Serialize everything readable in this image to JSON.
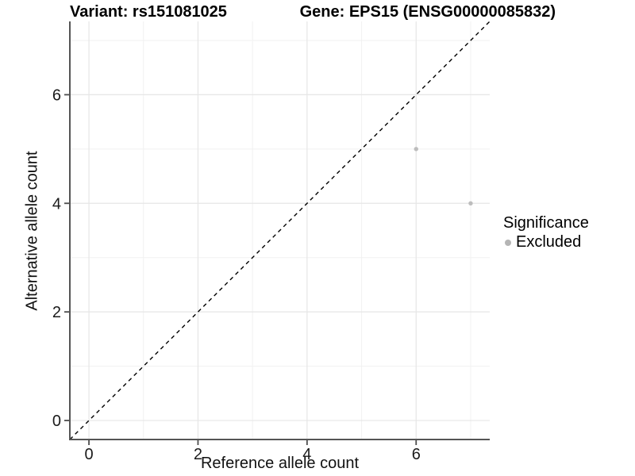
{
  "chart_data": {
    "type": "scatter",
    "title_left": "Variant: rs151081025",
    "title_right": "Gene: EPS15 (ENSG00000085832)",
    "xlabel": "Reference allele count",
    "ylabel": "Alternative allele count",
    "xlim": [
      -0.35,
      7.35
    ],
    "ylim": [
      -0.35,
      7.35
    ],
    "xticks": [
      0,
      2,
      4,
      6
    ],
    "yticks": [
      0,
      2,
      4,
      6
    ],
    "minor_xticks": [
      1,
      3,
      5,
      7
    ],
    "minor_yticks": [
      1,
      3,
      5,
      7
    ],
    "grid": "major+minor",
    "points": [
      {
        "x": 6,
        "y": 5,
        "series": "Excluded"
      },
      {
        "x": 7,
        "y": 4,
        "series": "Excluded"
      }
    ],
    "identity_line": {
      "style": "dashed",
      "equation": "y = x",
      "color": "#000000"
    },
    "legend": {
      "title": "Significance",
      "position": "right",
      "items": [
        {
          "label": "Excluded",
          "color": "#b5b5b5",
          "marker": "dot-icon"
        }
      ]
    },
    "colors": {
      "background": "#ffffff",
      "point": "#bdbdbd",
      "grid_major": "#e6e6e6",
      "grid_minor": "#f1f1f1",
      "axis_line": "#555555",
      "tick_mark": "#4d4d4d",
      "tick_label": "#1a1a1a"
    }
  }
}
